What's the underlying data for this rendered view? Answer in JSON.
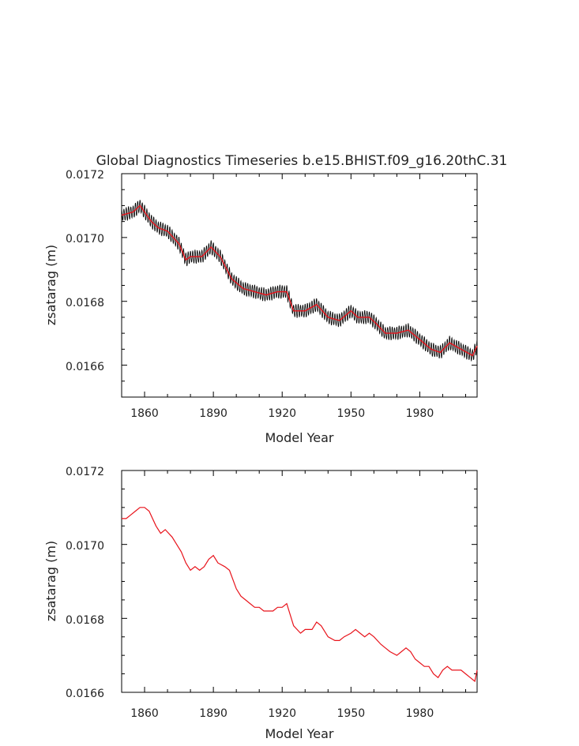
{
  "title": "Global Diagnostics Timeseries b.e15.BHIST.f09_g16.20thC.31",
  "chart_data": [
    {
      "type": "line",
      "xlabel": "Model Year",
      "ylabel": "zsatarag (m)",
      "xlim": [
        1850,
        2005
      ],
      "ylim": [
        0.0165,
        0.0172
      ],
      "xticks": [
        1860,
        1890,
        1920,
        1950,
        1980
      ],
      "xtick_labels": [
        "1860",
        "1890",
        "1920",
        "1950",
        "1980"
      ],
      "yticks": [
        0.0166,
        0.0168,
        0.017,
        0.0172
      ],
      "ytick_labels": [
        "0.0166",
        "0.0168",
        "0.0170",
        "0.0172"
      ],
      "grid": false,
      "series": [
        {
          "role": "monthly",
          "color": "#000000",
          "seasonal_amplitude": 2.2e-05,
          "note": "monthly values oscillating around the annual mean"
        },
        {
          "role": "annual",
          "color": "#e8131b",
          "x": [
            1850,
            1855,
            1858,
            1860,
            1863,
            1866,
            1870,
            1875,
            1878,
            1880,
            1885,
            1889,
            1893,
            1898,
            1903,
            1908,
            1913,
            1918,
            1922,
            1925,
            1930,
            1935,
            1940,
            1945,
            1950,
            1953,
            1958,
            1961,
            1965,
            1970,
            1975,
            1980,
            1985,
            1989,
            1993,
            1998,
            2003,
            2005
          ],
          "y": [
            0.01707,
            0.01708,
            0.0171,
            0.01708,
            0.01705,
            0.01703,
            0.01702,
            0.01698,
            0.01693,
            0.01694,
            0.01694,
            0.01697,
            0.01694,
            0.01687,
            0.01684,
            0.01683,
            0.01682,
            0.01683,
            0.01683,
            0.01677,
            0.01677,
            0.01679,
            0.01675,
            0.01674,
            0.01677,
            0.01675,
            0.01675,
            0.01673,
            0.0167,
            0.0167,
            0.01671,
            0.01668,
            0.01665,
            0.01664,
            0.01667,
            0.01665,
            0.01663,
            0.01666
          ]
        }
      ]
    },
    {
      "type": "line",
      "xlabel": "Model Year",
      "ylabel": "zsatarag (m)",
      "xlim": [
        1850,
        2005
      ],
      "ylim": [
        0.0166,
        0.0172
      ],
      "xticks": [
        1860,
        1890,
        1920,
        1950,
        1980
      ],
      "xtick_labels": [
        "1860",
        "1890",
        "1920",
        "1950",
        "1980"
      ],
      "yticks": [
        0.0166,
        0.0168,
        0.017,
        0.0172
      ],
      "ytick_labels": [
        "0.0166",
        "0.0168",
        "0.0170",
        "0.0172"
      ],
      "grid": false,
      "series": [
        {
          "role": "annual",
          "color": "#e8131b",
          "x": [
            1850,
            1852,
            1854,
            1856,
            1858,
            1860,
            1862,
            1865,
            1867,
            1869,
            1872,
            1874,
            1876,
            1878,
            1880,
            1882,
            1884,
            1886,
            1888,
            1890,
            1892,
            1895,
            1897,
            1900,
            1902,
            1904,
            1906,
            1908,
            1910,
            1912,
            1914,
            1916,
            1918,
            1920,
            1922,
            1925,
            1928,
            1930,
            1933,
            1935,
            1937,
            1940,
            1943,
            1945,
            1947,
            1950,
            1952,
            1954,
            1956,
            1958,
            1960,
            1963,
            1965,
            1967,
            1970,
            1972,
            1974,
            1976,
            1978,
            1980,
            1982,
            1984,
            1986,
            1988,
            1990,
            1992,
            1994,
            1996,
            1998,
            2000,
            2002,
            2004,
            2005
          ],
          "y": [
            0.01707,
            0.01707,
            0.01708,
            0.01709,
            0.0171,
            0.0171,
            0.01709,
            0.01705,
            0.01703,
            0.01704,
            0.01702,
            0.017,
            0.01698,
            0.01695,
            0.01693,
            0.01694,
            0.01693,
            0.01694,
            0.01696,
            0.01697,
            0.01695,
            0.01694,
            0.01693,
            0.01688,
            0.01686,
            0.01685,
            0.01684,
            0.01683,
            0.01683,
            0.01682,
            0.01682,
            0.01682,
            0.01683,
            0.01683,
            0.01684,
            0.01678,
            0.01676,
            0.01677,
            0.01677,
            0.01679,
            0.01678,
            0.01675,
            0.01674,
            0.01674,
            0.01675,
            0.01676,
            0.01677,
            0.01676,
            0.01675,
            0.01676,
            0.01675,
            0.01673,
            0.01672,
            0.01671,
            0.0167,
            0.01671,
            0.01672,
            0.01671,
            0.01669,
            0.01668,
            0.01667,
            0.01667,
            0.01665,
            0.01664,
            0.01666,
            0.01667,
            0.01666,
            0.01666,
            0.01666,
            0.01665,
            0.01664,
            0.01663,
            0.01666
          ]
        }
      ]
    }
  ]
}
